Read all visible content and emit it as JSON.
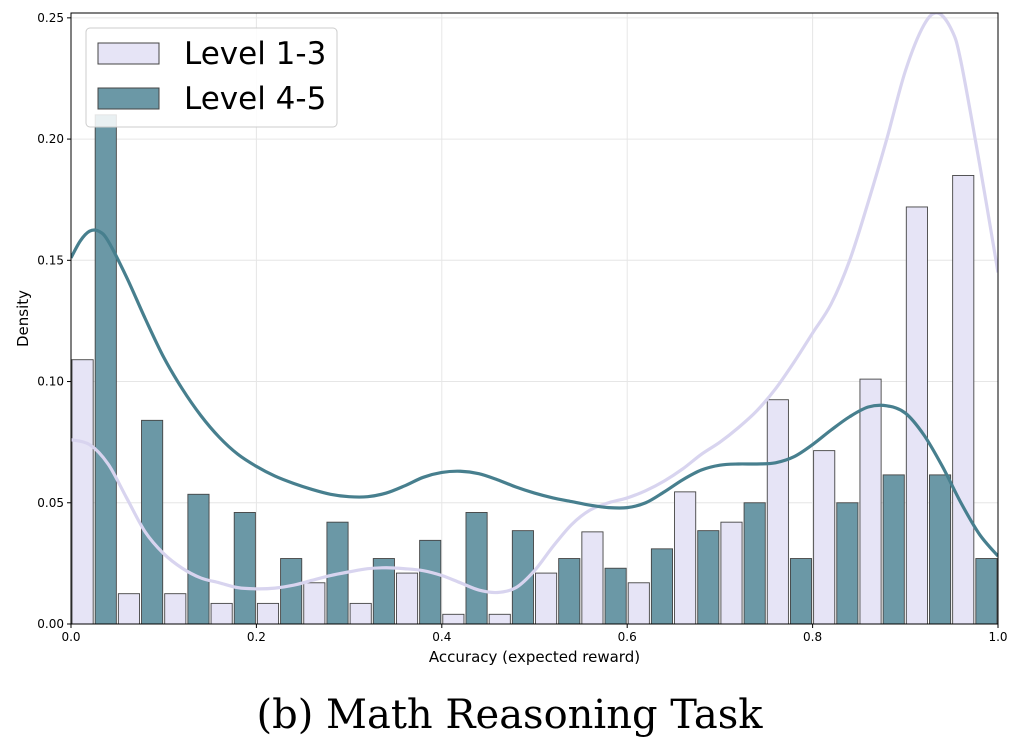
{
  "caption": "(b) Math Reasoning Task",
  "colors": {
    "level_1_3_fill": "#e6e4f6",
    "level_1_3_line": "#d8d4ef",
    "level_4_5_fill": "#6b98a6",
    "level_4_5_line": "#477f8e",
    "bar_edge": "#444444",
    "grid": "#e6e6e6"
  },
  "chart_data": {
    "type": "bar",
    "title": "",
    "xlabel": "Accuracy (expected reward)",
    "ylabel": "Density",
    "xlim": [
      0.0,
      1.0
    ],
    "ylim": [
      0.0,
      0.252
    ],
    "xticks": [
      "0.0",
      "0.2",
      "0.4",
      "0.6",
      "0.8",
      "1.0"
    ],
    "xtick_values": [
      0.0,
      0.2,
      0.4,
      0.6,
      0.8,
      1.0
    ],
    "yticks": [
      "0.00",
      "0.05",
      "0.10",
      "0.15",
      "0.20",
      "0.25"
    ],
    "ytick_values": [
      0.0,
      0.05,
      0.1,
      0.15,
      0.2,
      0.25
    ],
    "grid": true,
    "legend_position": "top-left",
    "bin_width": 0.05,
    "bin_starts": [
      0.0,
      0.05,
      0.1,
      0.15,
      0.2,
      0.25,
      0.3,
      0.35,
      0.4,
      0.45,
      0.5,
      0.55,
      0.6,
      0.65,
      0.7,
      0.75,
      0.8,
      0.85,
      0.9,
      0.95
    ],
    "series": [
      {
        "name": "Level 1-3",
        "values": [
          0.109,
          0.0125,
          0.0125,
          0.0085,
          0.0085,
          0.017,
          0.0085,
          0.021,
          0.004,
          0.004,
          0.021,
          0.038,
          0.017,
          0.0545,
          0.042,
          0.0925,
          0.0715,
          0.101,
          0.172,
          0.185
        ],
        "kde": [
          [
            0.0,
            0.076
          ],
          [
            0.02,
            0.074
          ],
          [
            0.04,
            0.066
          ],
          [
            0.06,
            0.052
          ],
          [
            0.08,
            0.038
          ],
          [
            0.1,
            0.029
          ],
          [
            0.12,
            0.023
          ],
          [
            0.14,
            0.019
          ],
          [
            0.16,
            0.017
          ],
          [
            0.18,
            0.015
          ],
          [
            0.2,
            0.0145
          ],
          [
            0.22,
            0.0148
          ],
          [
            0.24,
            0.016
          ],
          [
            0.26,
            0.018
          ],
          [
            0.28,
            0.02
          ],
          [
            0.3,
            0.0215
          ],
          [
            0.32,
            0.0228
          ],
          [
            0.34,
            0.0232
          ],
          [
            0.36,
            0.0228
          ],
          [
            0.38,
            0.022
          ],
          [
            0.4,
            0.02
          ],
          [
            0.42,
            0.017
          ],
          [
            0.44,
            0.014
          ],
          [
            0.46,
            0.013
          ],
          [
            0.48,
            0.015
          ],
          [
            0.5,
            0.022
          ],
          [
            0.52,
            0.032
          ],
          [
            0.54,
            0.041
          ],
          [
            0.56,
            0.047
          ],
          [
            0.58,
            0.05
          ],
          [
            0.6,
            0.052
          ],
          [
            0.62,
            0.055
          ],
          [
            0.64,
            0.059
          ],
          [
            0.66,
            0.064
          ],
          [
            0.68,
            0.07
          ],
          [
            0.7,
            0.075
          ],
          [
            0.72,
            0.081
          ],
          [
            0.74,
            0.088
          ],
          [
            0.76,
            0.097
          ],
          [
            0.78,
            0.108
          ],
          [
            0.8,
            0.12
          ],
          [
            0.82,
            0.132
          ],
          [
            0.84,
            0.15
          ],
          [
            0.86,
            0.174
          ],
          [
            0.88,
            0.2
          ],
          [
            0.9,
            0.228
          ],
          [
            0.92,
            0.247
          ],
          [
            0.935,
            0.252
          ],
          [
            0.95,
            0.245
          ],
          [
            0.96,
            0.232
          ],
          [
            0.98,
            0.19
          ],
          [
            1.0,
            0.145
          ]
        ]
      },
      {
        "name": "Level 4-5",
        "values": [
          0.21,
          0.084,
          0.0535,
          0.046,
          0.027,
          0.042,
          0.027,
          0.0345,
          0.046,
          0.0385,
          0.027,
          0.023,
          0.031,
          0.0385,
          0.05,
          0.027,
          0.05,
          0.0615,
          0.0615,
          0.027
        ],
        "kde": [
          [
            0.0,
            0.151
          ],
          [
            0.01,
            0.158
          ],
          [
            0.02,
            0.162
          ],
          [
            0.03,
            0.162
          ],
          [
            0.04,
            0.158
          ],
          [
            0.06,
            0.143
          ],
          [
            0.08,
            0.126
          ],
          [
            0.1,
            0.11
          ],
          [
            0.12,
            0.097
          ],
          [
            0.14,
            0.086
          ],
          [
            0.16,
            0.077
          ],
          [
            0.18,
            0.07
          ],
          [
            0.2,
            0.065
          ],
          [
            0.22,
            0.061
          ],
          [
            0.24,
            0.058
          ],
          [
            0.26,
            0.0555
          ],
          [
            0.28,
            0.0535
          ],
          [
            0.3,
            0.0525
          ],
          [
            0.32,
            0.0525
          ],
          [
            0.34,
            0.054
          ],
          [
            0.36,
            0.057
          ],
          [
            0.38,
            0.0605
          ],
          [
            0.4,
            0.0625
          ],
          [
            0.42,
            0.063
          ],
          [
            0.44,
            0.062
          ],
          [
            0.46,
            0.0595
          ],
          [
            0.48,
            0.0565
          ],
          [
            0.5,
            0.054
          ],
          [
            0.52,
            0.052
          ],
          [
            0.54,
            0.0505
          ],
          [
            0.56,
            0.049
          ],
          [
            0.58,
            0.048
          ],
          [
            0.6,
            0.048
          ],
          [
            0.62,
            0.05
          ],
          [
            0.64,
            0.0545
          ],
          [
            0.66,
            0.0595
          ],
          [
            0.68,
            0.0635
          ],
          [
            0.7,
            0.0655
          ],
          [
            0.72,
            0.066
          ],
          [
            0.74,
            0.066
          ],
          [
            0.76,
            0.0665
          ],
          [
            0.78,
            0.069
          ],
          [
            0.8,
            0.074
          ],
          [
            0.82,
            0.08
          ],
          [
            0.84,
            0.0855
          ],
          [
            0.86,
            0.0895
          ],
          [
            0.88,
            0.09
          ],
          [
            0.9,
            0.087
          ],
          [
            0.92,
            0.078
          ],
          [
            0.94,
            0.065
          ],
          [
            0.96,
            0.05
          ],
          [
            0.98,
            0.037
          ],
          [
            1.0,
            0.028
          ]
        ]
      }
    ]
  }
}
